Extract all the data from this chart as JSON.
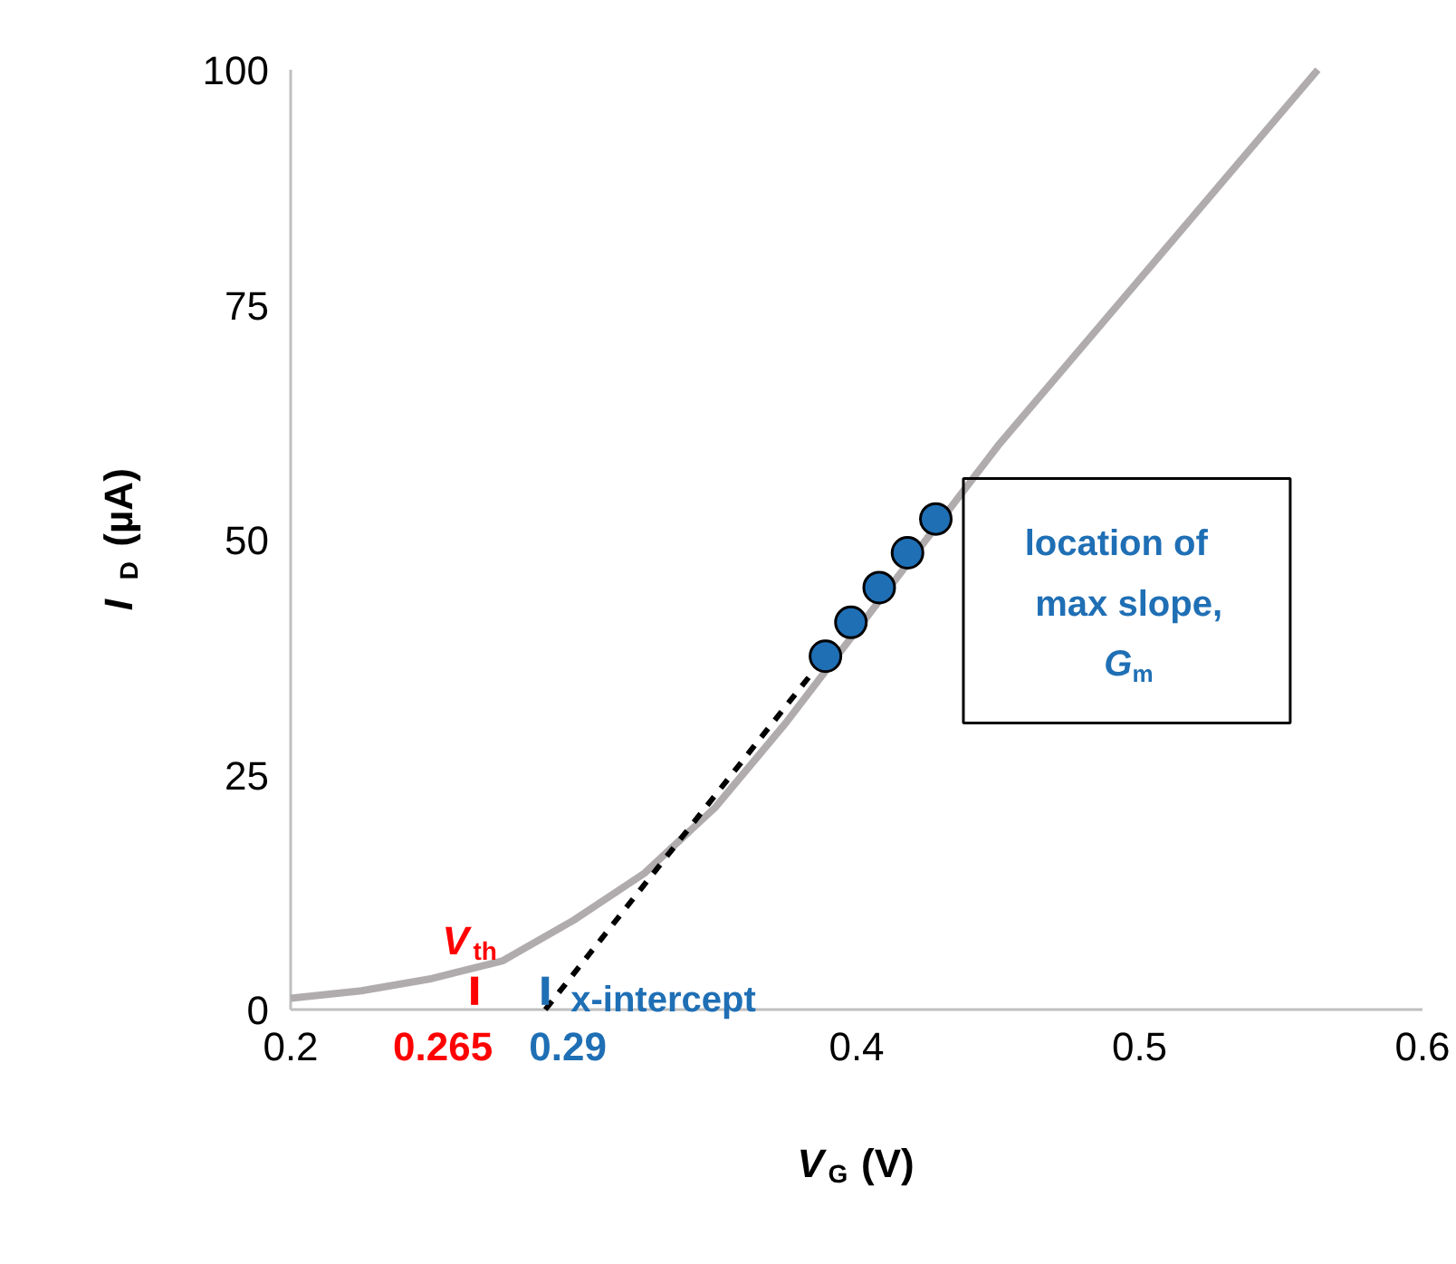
{
  "chart_data": {
    "type": "line",
    "xlabel": "V$_{G}$ (V)",
    "ylabel": "I$_{D}$ (µA)",
    "xlim": [
      0.2,
      0.6
    ],
    "ylim": [
      0,
      100
    ],
    "xticks": [
      0.2,
      0.4,
      0.5,
      0.6
    ],
    "yticks": [
      0,
      25,
      50,
      75,
      100
    ],
    "grid": false,
    "series": [
      {
        "color": "#b0acae",
        "x": [
          0.2,
          0.225,
          0.25,
          0.275,
          0.3,
          0.325,
          0.35,
          0.375,
          0.45,
          0.5,
          0.563
        ],
        "values": [
          1.2,
          2,
          3.3,
          5.2,
          9.5,
          14.5,
          21.5,
          30.5,
          60,
          77.7,
          100
        ]
      },
      {
        "type": "line",
        "color": "#000000",
        "line_style": "dashed",
        "x": [
          0.29,
          0.389
        ],
        "values": [
          0,
          37.6
        ]
      },
      {
        "type": "scatter",
        "color": "#1f6fb5",
        "marker": "circle",
        "x": [
          0.389,
          0.398,
          0.408,
          0.418,
          0.428
        ],
        "values": [
          37.6,
          41.2,
          44.9,
          48.6,
          52.2
        ]
      }
    ],
    "ref_lines": [
      {
        "axis": "x",
        "value": 0.265,
        "label": "0.265",
        "color": "#ff0000"
      },
      {
        "axis": "x",
        "value": 0.29,
        "label": "0.29",
        "color": "#1f6fb5"
      }
    ],
    "annotations": [
      {
        "text": "V$_{th}$",
        "x": 0.265,
        "y": 5.8
      },
      {
        "text": "x-intercept",
        "x": 0.29,
        "y": 0
      },
      "location of max slope, G$_{m}$"
    ]
  }
}
